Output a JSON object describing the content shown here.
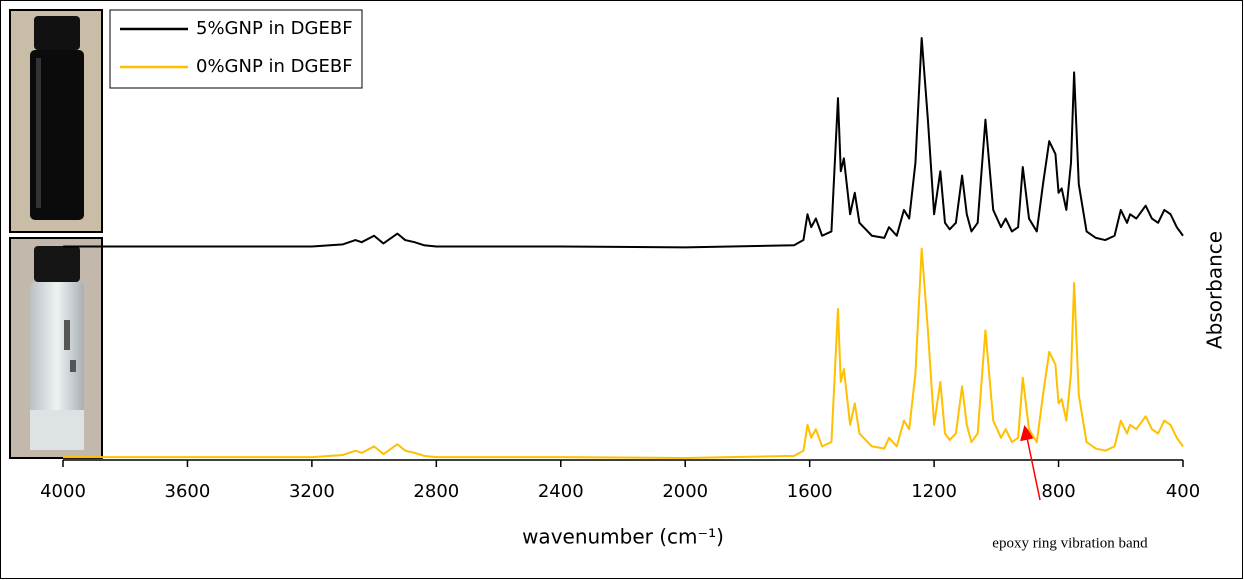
{
  "chart_data": {
    "type": "line",
    "xlabel": "wavenumber (cm⁻¹)",
    "ylabel": "Absorbance",
    "annotation": "epoxy ring vibration band",
    "xlim": [
      4000,
      400
    ],
    "xticks": [
      4000,
      3600,
      3200,
      2800,
      2400,
      2000,
      1600,
      1200,
      800,
      400
    ],
    "x": [
      4000,
      3200,
      3100,
      3060,
      3040,
      3000,
      2970,
      2925,
      2900,
      2870,
      2840,
      2800,
      2400,
      2000,
      1650,
      1620,
      1607,
      1595,
      1580,
      1560,
      1530,
      1509,
      1500,
      1490,
      1470,
      1455,
      1440,
      1400,
      1360,
      1345,
      1320,
      1297,
      1280,
      1260,
      1240,
      1220,
      1200,
      1180,
      1165,
      1150,
      1130,
      1110,
      1095,
      1080,
      1060,
      1035,
      1010,
      985,
      970,
      950,
      930,
      915,
      895,
      870,
      850,
      830,
      810,
      800,
      790,
      775,
      760,
      750,
      735,
      710,
      680,
      650,
      620,
      600,
      580,
      570,
      550,
      520,
      500,
      480,
      460,
      440,
      420,
      400
    ],
    "series": [
      {
        "name": "5%GNP in DGEBF",
        "color": "#000000",
        "values": [
          0.495,
          0.495,
          0.5,
          0.51,
          0.505,
          0.52,
          0.502,
          0.525,
          0.51,
          0.505,
          0.498,
          0.495,
          0.495,
          0.493,
          0.498,
          0.51,
          0.57,
          0.54,
          0.56,
          0.52,
          0.53,
          0.84,
          0.67,
          0.7,
          0.57,
          0.62,
          0.55,
          0.52,
          0.515,
          0.54,
          0.52,
          0.58,
          0.56,
          0.69,
          0.98,
          0.79,
          0.57,
          0.67,
          0.55,
          0.535,
          0.55,
          0.66,
          0.57,
          0.53,
          0.55,
          0.79,
          0.58,
          0.54,
          0.56,
          0.53,
          0.54,
          0.68,
          0.56,
          0.53,
          0.64,
          0.74,
          0.71,
          0.62,
          0.63,
          0.58,
          0.69,
          0.9,
          0.64,
          0.53,
          0.515,
          0.51,
          0.52,
          0.58,
          0.55,
          0.57,
          0.56,
          0.59,
          0.56,
          0.55,
          0.58,
          0.57,
          0.54,
          0.52
        ]
      },
      {
        "name": "0%GNP in DGEBF",
        "color": "#ffc000",
        "values": [
          0.005,
          0.005,
          0.01,
          0.02,
          0.015,
          0.03,
          0.012,
          0.035,
          0.02,
          0.015,
          0.008,
          0.005,
          0.005,
          0.003,
          0.008,
          0.02,
          0.08,
          0.05,
          0.07,
          0.03,
          0.04,
          0.35,
          0.18,
          0.21,
          0.08,
          0.13,
          0.06,
          0.03,
          0.025,
          0.05,
          0.03,
          0.09,
          0.07,
          0.2,
          0.49,
          0.3,
          0.08,
          0.18,
          0.06,
          0.045,
          0.06,
          0.17,
          0.08,
          0.04,
          0.06,
          0.3,
          0.09,
          0.05,
          0.07,
          0.04,
          0.05,
          0.19,
          0.07,
          0.04,
          0.15,
          0.25,
          0.22,
          0.13,
          0.14,
          0.09,
          0.2,
          0.41,
          0.15,
          0.04,
          0.025,
          0.02,
          0.03,
          0.09,
          0.06,
          0.08,
          0.07,
          0.1,
          0.07,
          0.06,
          0.09,
          0.08,
          0.05,
          0.03
        ]
      }
    ]
  }
}
